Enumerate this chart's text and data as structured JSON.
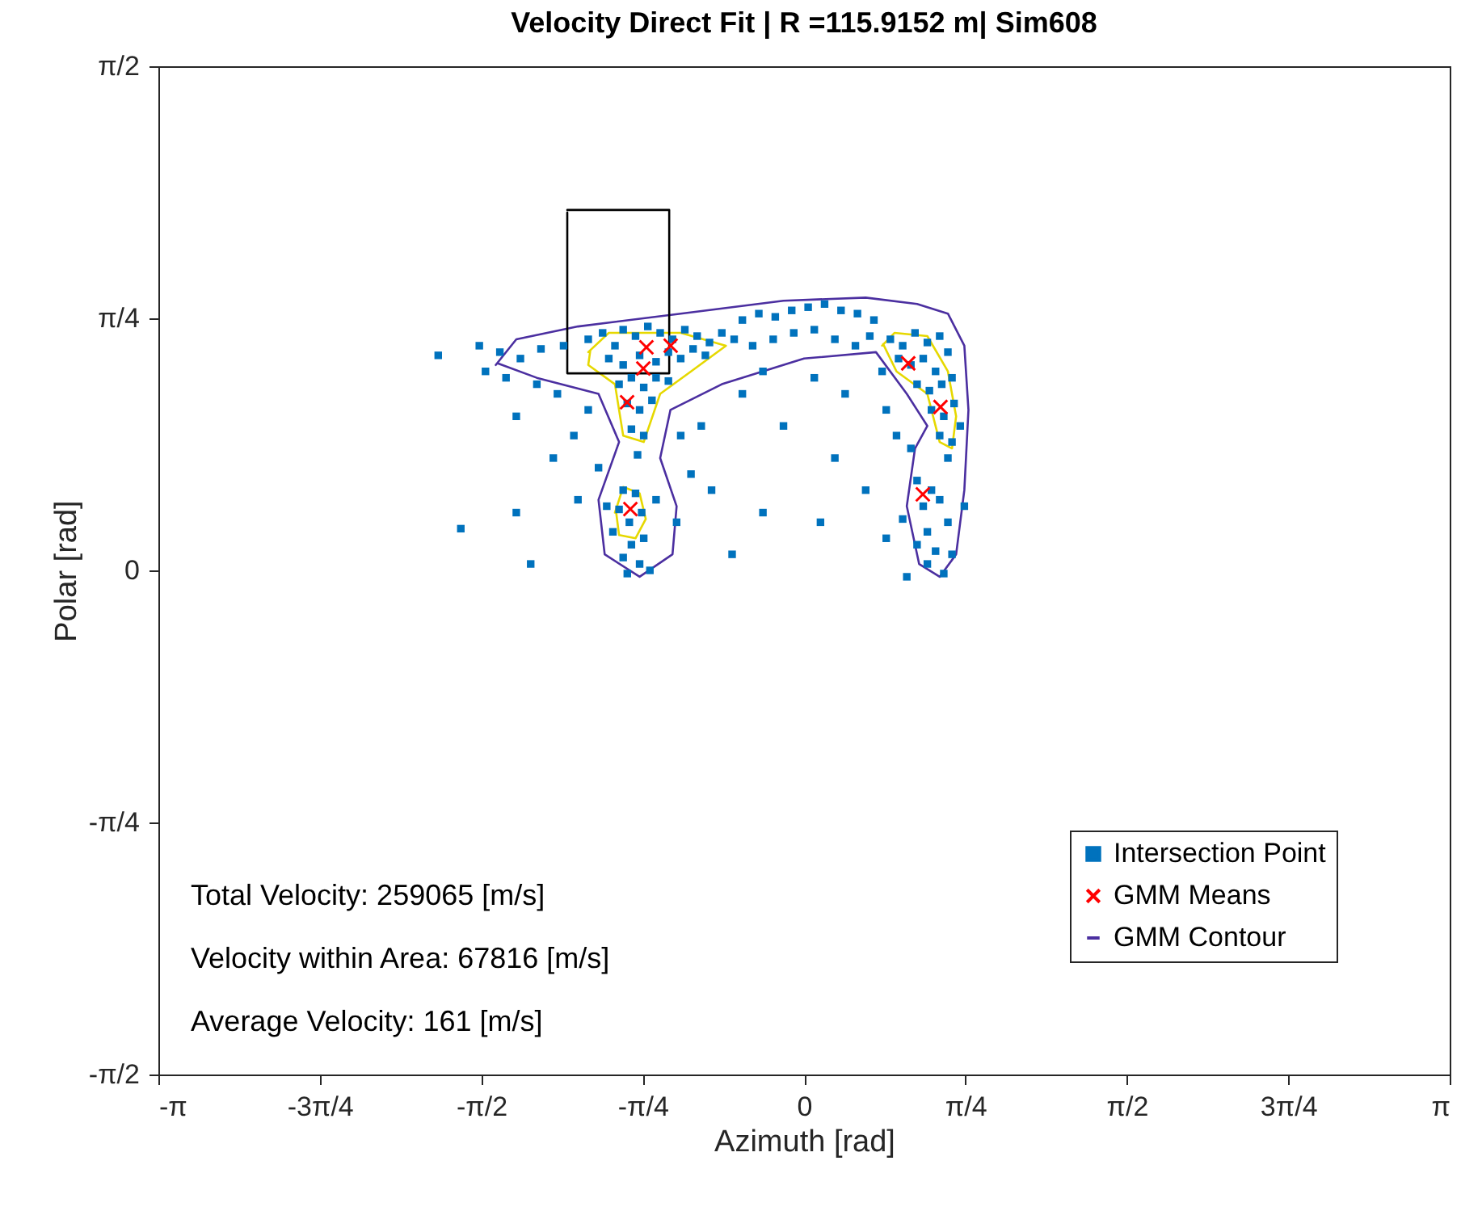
{
  "chart_data": {
    "type": "scatter",
    "title": "Velocity Direct Fit | R =115.9152 m| Sim608",
    "xlabel": "Azimuth [rad]",
    "ylabel": "Polar [rad]",
    "xlim": [
      -3.14159,
      3.14159
    ],
    "ylim": [
      -1.5708,
      1.5708
    ],
    "xticks": [
      {
        "value": -3.14159,
        "label": "-π"
      },
      {
        "value": -2.35619,
        "label": "-3π/4"
      },
      {
        "value": -1.5708,
        "label": "-π/2"
      },
      {
        "value": -0.7854,
        "label": "-π/4"
      },
      {
        "value": 0,
        "label": "0"
      },
      {
        "value": 0.7854,
        "label": "π/4"
      },
      {
        "value": 1.5708,
        "label": "π/2"
      },
      {
        "value": 2.35619,
        "label": "3π/4"
      },
      {
        "value": 3.14159,
        "label": "π"
      }
    ],
    "yticks": [
      {
        "value": -1.5708,
        "label": "-π/2"
      },
      {
        "value": -0.7854,
        "label": "-π/4"
      },
      {
        "value": 0,
        "label": "0"
      },
      {
        "value": 0.7854,
        "label": "π/4"
      },
      {
        "value": 1.5708,
        "label": "π/2"
      }
    ],
    "grid": false,
    "legend": "bottom right",
    "annotations": [
      "Total Velocity: 259065 [m/s]",
      "Velocity within Area: 67816 [m/s]",
      "Average Velocity: 161 [m/s]"
    ],
    "series": [
      {
        "name": "Intersection Point",
        "color": "#0072bd",
        "marker": "square",
        "x": [
          -1.05,
          -0.98,
          -0.92,
          -0.88,
          -0.82,
          -0.76,
          -0.7,
          -0.64,
          -0.58,
          -0.52,
          -0.46,
          -0.4,
          -0.34,
          -0.95,
          -0.88,
          -0.8,
          -0.72,
          -0.66,
          -0.6,
          -0.54,
          -0.48,
          -0.9,
          -0.84,
          -0.78,
          -0.72,
          -0.66,
          -0.86,
          -0.8,
          -0.74,
          -0.84,
          -0.78,
          -0.81,
          -0.88,
          -0.82,
          -0.9,
          -0.85,
          -0.79,
          -0.93,
          -0.84,
          -0.78,
          -0.88,
          -0.8,
          -0.75,
          -0.86,
          -0.96,
          -0.72,
          -1.17,
          -1.28,
          -1.38,
          -1.48,
          -1.78,
          -1.58,
          -1.55,
          -1.45,
          -1.3,
          -1.2,
          -1.05,
          -1.12,
          -1.4,
          -1.67,
          -1.33,
          -1.1,
          -1.22,
          -1.0,
          -0.6,
          -0.55,
          -0.45,
          -0.62,
          -0.35,
          -0.5,
          -1.4,
          -0.3,
          -0.22,
          -0.14,
          -0.06,
          0.02,
          0.1,
          0.18,
          0.26,
          0.34,
          -0.25,
          -0.15,
          -0.05,
          0.05,
          0.15,
          0.25,
          0.32,
          -0.2,
          0.05,
          0.2,
          -0.1,
          0.15,
          0.3,
          0.08,
          -0.2,
          -0.3,
          0.42,
          0.48,
          0.54,
          0.6,
          0.66,
          0.46,
          0.52,
          0.58,
          0.64,
          0.7,
          0.55,
          0.61,
          0.67,
          0.72,
          0.62,
          0.68,
          0.73,
          0.66,
          0.72,
          0.76,
          0.7,
          0.38,
          0.4,
          0.45,
          0.52,
          0.55,
          0.62,
          0.58,
          0.66,
          0.6,
          0.7,
          0.64,
          0.72,
          0.6,
          0.68,
          0.55,
          0.78,
          0.48,
          0.4,
          0.5
        ],
        "values": [
          0.72,
          0.74,
          0.7,
          0.75,
          0.73,
          0.76,
          0.74,
          0.72,
          0.75,
          0.73,
          0.71,
          0.74,
          0.72,
          0.66,
          0.64,
          0.67,
          0.65,
          0.68,
          0.66,
          0.69,
          0.67,
          0.58,
          0.6,
          0.57,
          0.6,
          0.59,
          0.52,
          0.5,
          0.53,
          0.44,
          0.42,
          0.36,
          0.25,
          0.24,
          0.19,
          0.15,
          0.18,
          0.12,
          0.08,
          0.1,
          0.04,
          0.02,
          0.0,
          -0.01,
          0.2,
          0.22,
          0.7,
          0.69,
          0.66,
          0.68,
          0.67,
          0.7,
          0.62,
          0.6,
          0.58,
          0.55,
          0.5,
          0.42,
          0.48,
          0.13,
          0.02,
          0.22,
          0.35,
          0.32,
          0.42,
          0.3,
          0.25,
          0.15,
          0.05,
          0.45,
          0.18,
          0.78,
          0.8,
          0.79,
          0.81,
          0.82,
          0.83,
          0.81,
          0.8,
          0.78,
          0.7,
          0.72,
          0.74,
          0.75,
          0.72,
          0.7,
          0.73,
          0.62,
          0.6,
          0.55,
          0.45,
          0.35,
          0.25,
          0.15,
          0.18,
          0.55,
          0.72,
          0.7,
          0.74,
          0.71,
          0.73,
          0.66,
          0.64,
          0.66,
          0.62,
          0.68,
          0.58,
          0.56,
          0.58,
          0.6,
          0.5,
          0.48,
          0.52,
          0.42,
          0.4,
          0.45,
          0.35,
          0.62,
          0.5,
          0.42,
          0.38,
          0.28,
          0.25,
          0.2,
          0.22,
          0.12,
          0.15,
          0.06,
          0.05,
          0.02,
          -0.01,
          0.08,
          0.2,
          0.16,
          0.1,
          -0.02
        ]
      },
      {
        "name": "GMM Means",
        "color": "#ff0000",
        "marker": "cross",
        "x": [
          -0.767,
          -0.649,
          -0.782,
          -0.861,
          -0.845,
          0.507,
          0.664,
          0.578
        ],
        "values": [
          0.695,
          0.7,
          0.629,
          0.524,
          0.191,
          0.645,
          0.509,
          0.237
        ]
      },
      {
        "type": "line",
        "name": "GMM Contour",
        "color": "#4b2fa0",
        "x": [
          -1.5,
          -1.4,
          -1.1,
          -0.6,
          -0.1,
          0.3,
          0.55,
          0.7,
          0.78,
          0.8,
          0.78,
          0.74,
          0.66,
          0.56,
          0.5,
          0.54,
          0.6,
          0.5,
          0.35,
          0.0,
          -0.4,
          -0.65,
          -0.7,
          -0.62,
          -0.64,
          -0.8,
          -0.97,
          -1.0,
          -0.9,
          -1.0,
          -1.3,
          -1.49
        ],
        "values": [
          0.64,
          0.72,
          0.76,
          0.8,
          0.84,
          0.85,
          0.83,
          0.8,
          0.7,
          0.5,
          0.25,
          0.05,
          -0.02,
          0.02,
          0.2,
          0.38,
          0.45,
          0.55,
          0.68,
          0.66,
          0.58,
          0.5,
          0.35,
          0.2,
          0.05,
          -0.02,
          0.05,
          0.22,
          0.4,
          0.55,
          0.6,
          0.645
        ]
      },
      {
        "type": "line",
        "color": "#e6d800",
        "x": [
          -1.05,
          -0.95,
          -0.6,
          -0.38,
          -0.55,
          -0.7,
          -0.78,
          -0.88,
          -0.92,
          -1.05,
          -1.04,
          null,
          -0.92,
          -0.88,
          -0.8,
          -0.77,
          -0.82,
          -0.9,
          -0.915,
          null,
          0.38,
          0.44,
          0.6,
          0.7,
          0.74,
          0.72,
          0.66,
          0.6,
          0.45,
          0.385
        ],
        "values": [
          0.68,
          0.74,
          0.74,
          0.7,
          0.62,
          0.55,
          0.4,
          0.42,
          0.58,
          0.64,
          0.685,
          null,
          0.18,
          0.26,
          0.24,
          0.16,
          0.1,
          0.11,
          0.185,
          null,
          0.7,
          0.74,
          0.73,
          0.62,
          0.48,
          0.38,
          0.4,
          0.55,
          0.62,
          0.705
        ]
      },
      {
        "type": "line",
        "color": "#000000",
        "x": [
          -1.152,
          -0.656,
          -0.656,
          -1.152,
          -1.152
        ],
        "values": [
          1.123,
          1.123,
          0.614,
          0.614,
          1.115
        ]
      }
    ]
  }
}
